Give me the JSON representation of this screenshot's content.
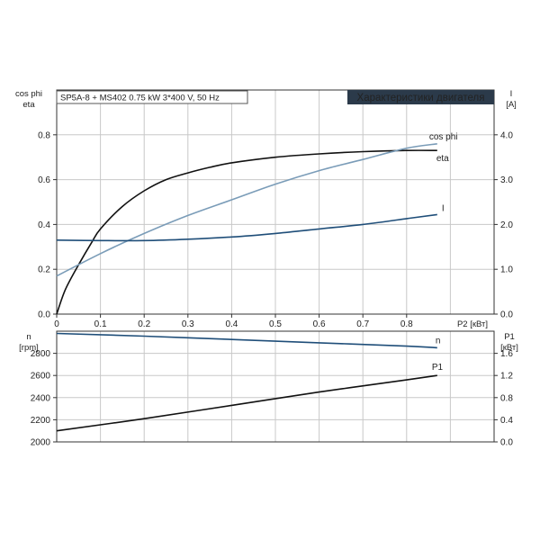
{
  "header": {
    "pump_label": "SP5A-8 + MS402  0.75 kW  3*400 V, 50 Hz",
    "badge": "Характеристики двигателя"
  },
  "colors": {
    "eta": "#111111",
    "cos_phi": "#7a9cb8",
    "current": "#1f4e79",
    "n": "#1f4e79",
    "p1": "#111111",
    "badge_bg": "#2b3a4a",
    "badge_text": "#ffffff"
  },
  "chart_data": [
    {
      "type": "line",
      "panel": "upper",
      "xlabel": "P2 [кВт]",
      "xlim": [
        0,
        0.9
      ],
      "x_ticks": [
        "0",
        "0.1",
        "0.2",
        "0.3",
        "0.4",
        "0.5",
        "0.6",
        "0.7",
        "0.8"
      ],
      "left_axis": {
        "label_line1": "cos phi",
        "label_line2": "eta",
        "ylim": [
          0,
          1.0
        ],
        "ticks": [
          "0.0",
          "0.2",
          "0.4",
          "0.6",
          "0.8"
        ]
      },
      "right_axis": {
        "label_line1": "I",
        "label_line2": "[A]",
        "ylim": [
          0,
          5.0
        ],
        "ticks": [
          "0.0",
          "1.0",
          "2.0",
          "3.0",
          "4.0"
        ]
      },
      "grid": true,
      "series": [
        {
          "name": "eta",
          "axis": "left",
          "color": "#111111",
          "x": [
            0,
            0.02,
            0.05,
            0.08,
            0.1,
            0.15,
            0.2,
            0.25,
            0.3,
            0.35,
            0.4,
            0.5,
            0.6,
            0.7,
            0.8,
            0.87
          ],
          "y": [
            0.0,
            0.11,
            0.22,
            0.32,
            0.38,
            0.48,
            0.55,
            0.6,
            0.63,
            0.655,
            0.675,
            0.7,
            0.715,
            0.725,
            0.73,
            0.73
          ]
        },
        {
          "name": "cos phi",
          "axis": "left",
          "color": "#7a9cb8",
          "x": [
            0,
            0.1,
            0.2,
            0.3,
            0.4,
            0.5,
            0.6,
            0.7,
            0.8,
            0.87
          ],
          "y": [
            0.17,
            0.27,
            0.36,
            0.44,
            0.51,
            0.58,
            0.64,
            0.69,
            0.74,
            0.76
          ]
        },
        {
          "name": "I",
          "axis": "right",
          "color": "#1f4e79",
          "x": [
            0,
            0.1,
            0.2,
            0.3,
            0.4,
            0.5,
            0.6,
            0.7,
            0.8,
            0.87
          ],
          "y": [
            1.65,
            1.64,
            1.64,
            1.67,
            1.72,
            1.8,
            1.9,
            2.0,
            2.13,
            2.22
          ]
        }
      ]
    },
    {
      "type": "line",
      "panel": "lower",
      "xlim": [
        0,
        0.9
      ],
      "left_axis": {
        "label_line1": "n",
        "label_line2": "[rpm]",
        "ylim": [
          2000,
          3000
        ],
        "ticks": [
          "2000",
          "2200",
          "2400",
          "2600",
          "2800"
        ]
      },
      "right_axis": {
        "label_line1": "P1",
        "label_line2": "[кВт]",
        "ylim": [
          0,
          2.0
        ],
        "ticks": [
          "0.0",
          "0.4",
          "0.8",
          "1.2",
          "1.6"
        ]
      },
      "grid": true,
      "series": [
        {
          "name": "n",
          "axis": "left",
          "color": "#1f4e79",
          "x": [
            0,
            0.2,
            0.4,
            0.6,
            0.8,
            0.87
          ],
          "y": [
            2980,
            2955,
            2925,
            2895,
            2865,
            2850
          ]
        },
        {
          "name": "P1",
          "axis": "right",
          "color": "#111111",
          "x": [
            0,
            0.2,
            0.4,
            0.6,
            0.8,
            0.87
          ],
          "y": [
            0.2,
            0.42,
            0.66,
            0.9,
            1.12,
            1.2
          ]
        }
      ]
    }
  ]
}
